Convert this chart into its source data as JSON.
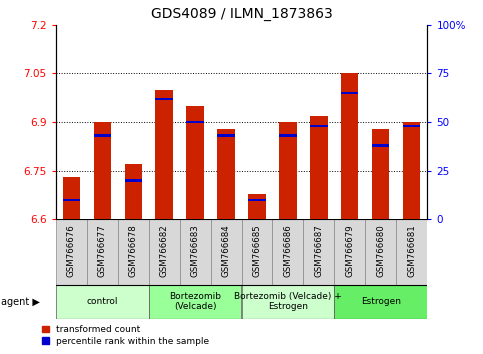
{
  "title": "GDS4089 / ILMN_1873863",
  "samples": [
    "GSM766676",
    "GSM766677",
    "GSM766678",
    "GSM766682",
    "GSM766683",
    "GSM766684",
    "GSM766685",
    "GSM766686",
    "GSM766687",
    "GSM766679",
    "GSM766680",
    "GSM766681"
  ],
  "red_values": [
    6.73,
    6.9,
    6.77,
    7.0,
    6.95,
    6.88,
    6.68,
    6.9,
    6.92,
    7.05,
    6.88,
    6.9
  ],
  "blue_values": [
    10,
    43,
    20,
    62,
    50,
    43,
    10,
    43,
    48,
    65,
    38,
    48
  ],
  "ylim_left": [
    6.6,
    7.2
  ],
  "ylim_right": [
    0,
    100
  ],
  "yticks_left": [
    6.6,
    6.75,
    6.9,
    7.05,
    7.2
  ],
  "yticks_right": [
    0,
    25,
    50,
    75,
    100
  ],
  "ytick_labels_left": [
    "6.6",
    "6.75",
    "6.9",
    "7.05",
    "7.2"
  ],
  "ytick_labels_right": [
    "0",
    "25",
    "50",
    "75",
    "100%"
  ],
  "groups": [
    {
      "label": "control",
      "start": 0,
      "end": 3,
      "color": "#ccffcc"
    },
    {
      "label": "Bortezomib\n(Velcade)",
      "start": 3,
      "end": 6,
      "color": "#99ff99"
    },
    {
      "label": "Bortezomib (Velcade) +\nEstrogen",
      "start": 6,
      "end": 9,
      "color": "#ccffcc"
    },
    {
      "label": "Estrogen",
      "start": 9,
      "end": 12,
      "color": "#66ee66"
    }
  ],
  "bar_color": "#cc2200",
  "blue_color": "#0000cc",
  "bar_bottom": 6.6,
  "legend_items": [
    {
      "color": "#cc2200",
      "label": "transformed count"
    },
    {
      "color": "#0000cc",
      "label": "percentile rank within the sample"
    }
  ],
  "title_fontsize": 10,
  "tick_fontsize": 7.5,
  "bar_width": 0.55
}
